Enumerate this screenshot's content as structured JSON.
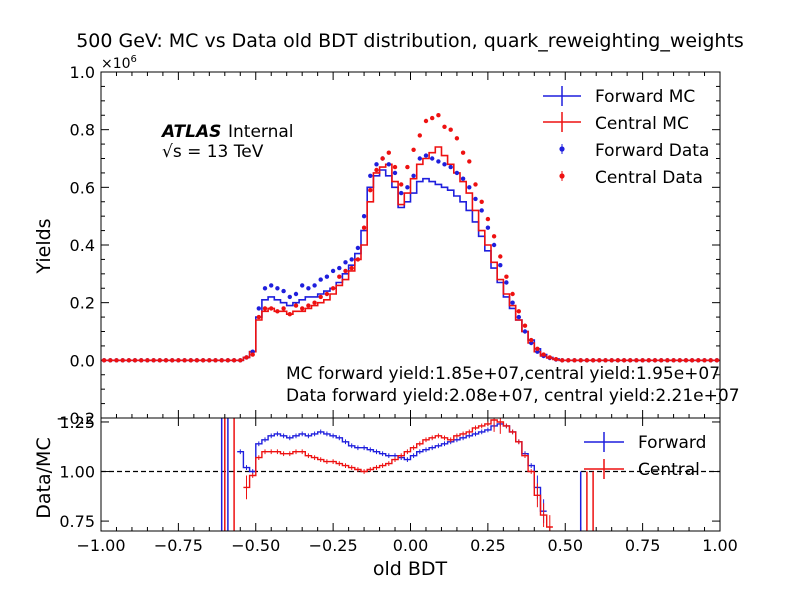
{
  "chart_data": [
    {
      "type": "step",
      "title": "500 GeV: MC vs Data old BDT distribution, quark_reweighting_weights",
      "ylabel": "Yields",
      "offset_label": "×10",
      "offset_exp": "6",
      "ylim": [
        -0.2,
        1.0
      ],
      "xlim": [
        -1.0,
        1.0
      ],
      "yticks": [
        "−0.2",
        "0.0",
        "0.2",
        "0.4",
        "0.6",
        "0.8",
        "1.0"
      ],
      "atlas_label": "ATLAS",
      "atlas_sub": "Internal",
      "energy_label": "√s = 13 TeV",
      "annotation_mc": "MC forward yield:1.85e+07,central yield:1.95e+07",
      "annotation_data": "Data forward yield:2.08e+07, central yield:2.21e+07",
      "bin_edges_range": [
        -1.0,
        1.0
      ],
      "n_bins": 100,
      "series": [
        {
          "name": "Forward MC",
          "color": "#1f1fdd",
          "kind": "hist",
          "values": [
            0,
            0,
            0,
            0,
            0,
            0,
            0,
            0,
            0,
            0,
            0,
            0,
            0,
            0,
            0,
            0,
            0,
            0,
            0,
            0,
            0,
            0,
            0,
            0.01,
            0.03,
            0.15,
            0.21,
            0.22,
            0.21,
            0.2,
            0.19,
            0.2,
            0.21,
            0.22,
            0.22,
            0.23,
            0.24,
            0.25,
            0.27,
            0.3,
            0.33,
            0.37,
            0.45,
            0.6,
            0.64,
            0.66,
            0.64,
            0.6,
            0.53,
            0.55,
            0.58,
            0.62,
            0.63,
            0.62,
            0.61,
            0.6,
            0.59,
            0.57,
            0.55,
            0.52,
            0.48,
            0.43,
            0.38,
            0.32,
            0.27,
            0.22,
            0.18,
            0.14,
            0.1,
            0.07,
            0.04,
            0.02,
            0.01,
            0.005,
            0,
            0,
            0,
            0,
            0,
            0,
            0,
            0,
            0,
            0,
            0,
            0,
            0,
            0,
            0,
            0,
            0,
            0,
            0,
            0,
            0,
            0,
            0,
            0,
            0,
            0
          ]
        },
        {
          "name": "Central MC",
          "color": "#ee1111",
          "kind": "hist",
          "values": [
            0,
            0,
            0,
            0,
            0,
            0,
            0,
            0,
            0,
            0,
            0,
            0,
            0,
            0,
            0,
            0,
            0,
            0,
            0,
            0,
            0,
            0,
            0,
            0.01,
            0.03,
            0.14,
            0.17,
            0.18,
            0.17,
            0.17,
            0.16,
            0.17,
            0.17,
            0.18,
            0.19,
            0.2,
            0.21,
            0.23,
            0.26,
            0.28,
            0.31,
            0.35,
            0.4,
            0.55,
            0.65,
            0.67,
            0.68,
            0.62,
            0.54,
            0.58,
            0.63,
            0.68,
            0.7,
            0.72,
            0.74,
            0.71,
            0.68,
            0.65,
            0.62,
            0.58,
            0.52,
            0.45,
            0.4,
            0.34,
            0.28,
            0.23,
            0.19,
            0.14,
            0.1,
            0.06,
            0.03,
            0.015,
            0.008,
            0.003,
            0,
            0,
            0,
            0,
            0,
            0,
            0,
            0,
            0,
            0,
            0,
            0,
            0,
            0,
            0,
            0,
            0,
            0,
            0,
            0,
            0,
            0,
            0,
            0,
            0,
            0
          ]
        },
        {
          "name": "Forward Data",
          "color": "#1f1fdd",
          "kind": "points",
          "values": [
            0,
            0,
            0,
            0,
            0,
            0,
            0,
            0,
            0,
            0,
            0,
            0,
            0,
            0,
            0,
            0,
            0,
            0,
            0,
            0,
            0,
            0,
            0,
            0.01,
            0.03,
            0.18,
            0.25,
            0.26,
            0.25,
            0.24,
            0.22,
            0.23,
            0.26,
            0.25,
            0.26,
            0.28,
            0.29,
            0.31,
            0.32,
            0.34,
            0.35,
            0.39,
            0.5,
            0.64,
            0.68,
            0.7,
            0.68,
            0.65,
            0.58,
            0.6,
            0.64,
            0.7,
            0.71,
            0.7,
            0.69,
            0.68,
            0.67,
            0.65,
            0.63,
            0.6,
            0.56,
            0.52,
            0.46,
            0.4,
            0.33,
            0.27,
            0.2,
            0.15,
            0.1,
            0.06,
            0.03,
            0.015,
            0.008,
            0.003,
            0,
            0,
            0,
            0,
            0,
            0,
            0,
            0,
            0,
            0,
            0,
            0,
            0,
            0,
            0,
            0,
            0,
            0,
            0,
            0,
            0,
            0,
            0,
            0,
            0,
            0
          ]
        },
        {
          "name": "Central Data",
          "color": "#ee1111",
          "kind": "points",
          "values": [
            0,
            0,
            0,
            0,
            0,
            0,
            0,
            0,
            0,
            0,
            0,
            0,
            0,
            0,
            0,
            0,
            0,
            0,
            0,
            0,
            0,
            0,
            0,
            0.01,
            0.02,
            0.15,
            0.18,
            0.18,
            0.17,
            0.18,
            0.16,
            0.19,
            0.18,
            0.19,
            0.2,
            0.22,
            0.23,
            0.25,
            0.29,
            0.31,
            0.32,
            0.35,
            0.46,
            0.59,
            0.66,
            0.7,
            0.72,
            0.67,
            0.61,
            0.67,
            0.73,
            0.78,
            0.83,
            0.84,
            0.85,
            0.81,
            0.8,
            0.77,
            0.72,
            0.69,
            0.61,
            0.55,
            0.49,
            0.43,
            0.36,
            0.29,
            0.23,
            0.17,
            0.12,
            0.07,
            0.04,
            0.02,
            0.01,
            0.004,
            0,
            0,
            0,
            0,
            0,
            0,
            0,
            0,
            0,
            0,
            0,
            0,
            0,
            0,
            0,
            0,
            0,
            0,
            0,
            0,
            0,
            0,
            0,
            0,
            0,
            0
          ]
        }
      ]
    },
    {
      "type": "step",
      "xlabel": "old BDT",
      "ylabel": "Data/MC",
      "ylim": [
        0.7,
        1.27
      ],
      "xlim": [
        -1.0,
        1.0
      ],
      "yticks": [
        "0.75",
        "1.00",
        "1.25"
      ],
      "xticks": [
        "−1.00",
        "−0.75",
        "−0.50",
        "−0.25",
        "0.00",
        "0.25",
        "0.50",
        "0.75",
        "1.00"
      ],
      "reference_line": 1.0,
      "series": [
        {
          "name": "Forward",
          "color": "#1f1fdd",
          "values": [
            null,
            null,
            null,
            null,
            null,
            null,
            null,
            null,
            null,
            null,
            null,
            null,
            null,
            null,
            null,
            null,
            null,
            null,
            null,
            null,
            null,
            null,
            1.1,
            1.02,
            1.0,
            1.14,
            1.16,
            1.18,
            1.19,
            1.18,
            1.17,
            1.18,
            1.19,
            1.18,
            1.19,
            1.2,
            1.19,
            1.18,
            1.17,
            1.15,
            1.13,
            1.12,
            1.12,
            1.11,
            1.1,
            1.09,
            1.08,
            1.08,
            1.07,
            1.06,
            1.08,
            1.1,
            1.11,
            1.12,
            1.13,
            1.14,
            1.15,
            1.16,
            1.17,
            1.18,
            1.19,
            1.2,
            1.21,
            1.23,
            1.24,
            1.23,
            1.2,
            1.15,
            1.09,
            1.03,
            0.92,
            0.8,
            null,
            null,
            null,
            null,
            null,
            null,
            null,
            null,
            null,
            null,
            null,
            null,
            null,
            null,
            null,
            null,
            null,
            null,
            null,
            null,
            null,
            null,
            null,
            null,
            null,
            null,
            null,
            null
          ]
        },
        {
          "name": "Central",
          "color": "#ee1111",
          "values": [
            null,
            null,
            null,
            null,
            null,
            null,
            null,
            null,
            null,
            null,
            null,
            null,
            null,
            null,
            null,
            null,
            null,
            null,
            null,
            null,
            null,
            null,
            null,
            0.92,
            0.98,
            1.07,
            1.1,
            1.1,
            1.1,
            1.09,
            1.09,
            1.1,
            1.1,
            1.08,
            1.07,
            1.06,
            1.05,
            1.05,
            1.04,
            1.03,
            1.02,
            1.01,
            1.0,
            1.01,
            1.02,
            1.03,
            1.04,
            1.06,
            1.08,
            1.1,
            1.12,
            1.14,
            1.16,
            1.17,
            1.18,
            1.17,
            1.16,
            1.18,
            1.19,
            1.2,
            1.22,
            1.23,
            1.24,
            1.26,
            1.25,
            1.23,
            1.2,
            1.15,
            1.08,
            1.0,
            0.88,
            0.78,
            0.72,
            null,
            null,
            null,
            null,
            null,
            null,
            null,
            null,
            null,
            null,
            null,
            null,
            null,
            null,
            null,
            null,
            null,
            null,
            null,
            null,
            null,
            null,
            null,
            null,
            null,
            null,
            null
          ]
        }
      ]
    }
  ]
}
